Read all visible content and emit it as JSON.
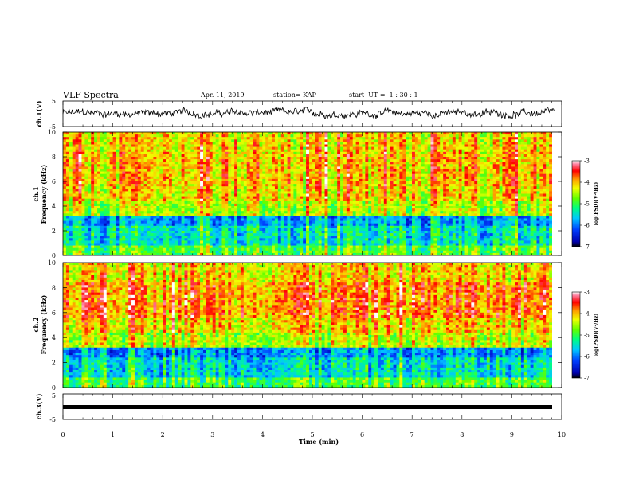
{
  "header": {
    "title": "VLF Spectra",
    "date": "Apr. 11, 2019",
    "station": "station= KAP",
    "start_ut": "start  UT =  1 : 30 : 1"
  },
  "chart_data": [
    {
      "type": "line",
      "panel": "ch1-waveform",
      "ylabel": "ch.1(V)",
      "ylim": [
        -5,
        5
      ],
      "yticks": [
        "5",
        "-5"
      ],
      "xlim": [
        0,
        10
      ],
      "description_note": "",
      "series": [
        {
          "values_mean": 0,
          "values_range": [
            -2,
            2.5
          ],
          "duration_min": 9.85
        }
      ]
    },
    {
      "type": "heatmap",
      "panel": "ch1-spectrogram",
      "ylabel": "ch.1 Frequency (kHz)",
      "ylabel_lines": [
        "ch.1",
        "Frequency (kHz)"
      ],
      "ylim": [
        0,
        10
      ],
      "yticks": [
        "0",
        "2",
        "4",
        "6",
        "8",
        "10"
      ],
      "xlim": [
        0,
        10
      ],
      "colorbar": {
        "label": "log(PSD)(V²/Hz)",
        "range": [
          -7,
          -3
        ],
        "ticks": [
          "-3",
          "-4",
          "-5",
          "-6",
          "-7"
        ]
      }
    },
    {
      "type": "heatmap",
      "panel": "ch2-spectrogram",
      "ylabel": "ch.2 Frequency (kHz)",
      "ylabel_lines": [
        "ch.2",
        "Frequency (kHz)"
      ],
      "ylim": [
        0,
        10
      ],
      "yticks": [
        "0",
        "2",
        "4",
        "6",
        "8",
        "10"
      ],
      "xlim": [
        0,
        10
      ],
      "colorbar": {
        "label": "log(PSD)(V²/Hz)",
        "range": [
          -7,
          -3
        ],
        "ticks": [
          "-3",
          "-4",
          "-5",
          "-6",
          "-7"
        ]
      }
    },
    {
      "type": "line",
      "panel": "ch3-waveform",
      "ylabel": "ch.3(V)",
      "ylim": [
        -5,
        5
      ],
      "yticks": [
        "5",
        "-5"
      ],
      "xlim": [
        0,
        10
      ],
      "series": [
        {
          "values_mean": -1.2,
          "values_range": [
            -1.4,
            -1.0
          ],
          "duration_min": 9.85
        }
      ]
    }
  ],
  "xaxis": {
    "label": "Time (min)",
    "ticks": [
      "0",
      "1",
      "2",
      "3",
      "4",
      "5",
      "6",
      "7",
      "8",
      "9",
      "10"
    ],
    "xlim": [
      0,
      10
    ]
  }
}
